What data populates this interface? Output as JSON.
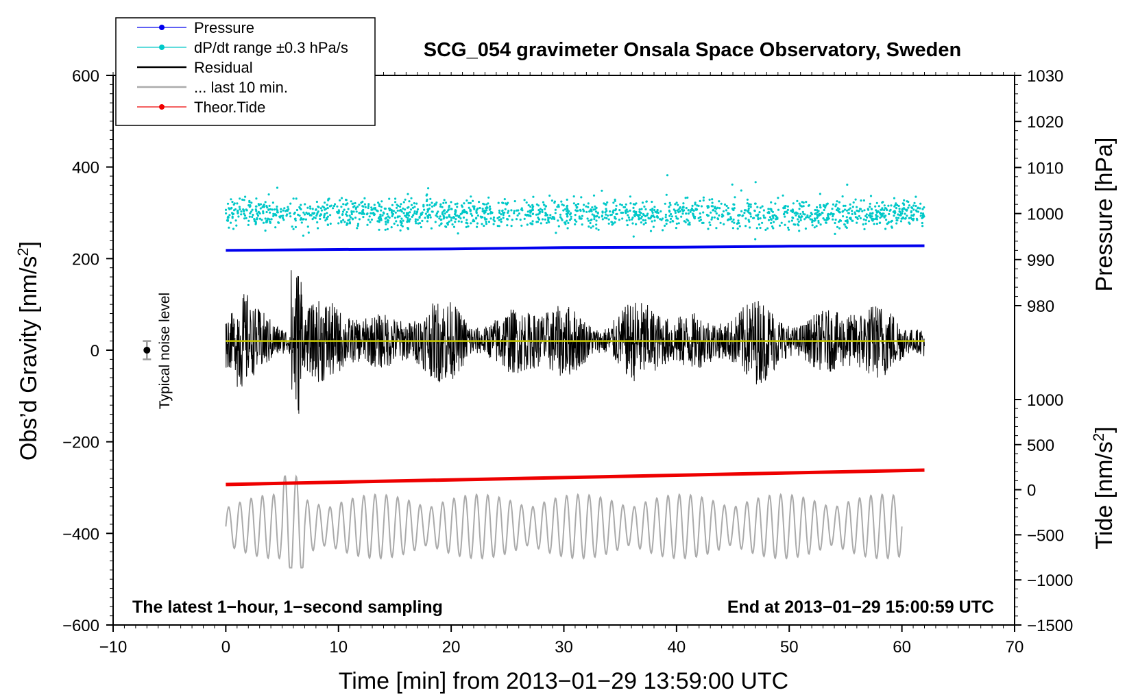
{
  "chart_data": {
    "type": "line",
    "title": "SCG_054 gravimeter Onsala Space Observatory, Sweden",
    "xlabel": "Time [min] from 2013−01−29 13:59:00 UTC",
    "ylabel_left_main": "Obs’d Gravity [nm/s",
    "ylabel_left_sup": "2",
    "ylabel_left_tail": "]",
    "ylabel_right_pressure": "Pressure [hPa]",
    "ylabel_right_tide_main": "Tide [nm/s",
    "ylabel_right_tide_sup": "2",
    "ylabel_right_tide_tail": "]",
    "note_left": "The latest 1−hour, 1−second sampling",
    "note_right": "End at 2013−01−29 15:00:59 UTC",
    "noise_label": "Typical noise level",
    "xlim": [
      -10,
      70
    ],
    "ylim": [
      -600,
      600
    ],
    "pressure_lim": [
      970,
      1030
    ],
    "tide_lim": [
      -1500,
      1500
    ],
    "x_ticks": [
      -10,
      0,
      10,
      20,
      30,
      40,
      50,
      60,
      70
    ],
    "x_tick_labels": [
      "−10",
      "0",
      "10",
      "20",
      "30",
      "40",
      "50",
      "60",
      "70"
    ],
    "y_ticks": [
      -600,
      -400,
      -200,
      0,
      200,
      400,
      600
    ],
    "y_tick_labels": [
      "−600",
      "−400",
      "−200",
      "0",
      "200",
      "400",
      "600"
    ],
    "pressure_ticks": [
      980,
      990,
      1000,
      1010,
      1020,
      1030
    ],
    "pressure_tick_labels": [
      "980",
      "990",
      "1000",
      "1010",
      "1020",
      "1030"
    ],
    "tide_ticks": [
      -1500,
      -1000,
      -500,
      0,
      500,
      1000
    ],
    "tide_tick_labels": [
      "−1500",
      "−1000",
      "−500",
      "0",
      "500",
      "1000"
    ],
    "noise_level": {
      "x": -7,
      "center": 0,
      "low": -20,
      "high": 20
    },
    "legend": [
      {
        "label": "Pressure",
        "color": "#0000ee",
        "style": "line-dot"
      },
      {
        "label": "dP/dt range ±0.3 hPa/s",
        "color": "#00c8c8",
        "style": "line-dot"
      },
      {
        "label": "Residual",
        "color": "#000000",
        "style": "line"
      },
      {
        "label": "... last 10 min.",
        "color": "#aaaaaa",
        "style": "line"
      },
      {
        "label": "Theor.Tide",
        "color": "#ee0000",
        "style": "line-dot"
      }
    ],
    "series": [
      {
        "name": "Pressure",
        "axis": "pressure",
        "color": "#0000ee",
        "x": [
          0,
          10,
          20,
          30,
          40,
          50,
          62
        ],
        "values": [
          992.0,
          992.2,
          992.3,
          992.6,
          992.7,
          992.9,
          993.0
        ]
      },
      {
        "name": "dP/dt range ±0.3 hPa/s",
        "axis": "pressure",
        "color": "#00c8c8",
        "center": 1000,
        "spread": 3,
        "x_range": [
          0,
          62
        ]
      },
      {
        "name": "Residual",
        "axis": "gravity",
        "color": "#000000",
        "baseline": 20,
        "x_range": [
          0,
          62
        ],
        "min": -185,
        "max": 235
      },
      {
        "name": "Residual mean",
        "axis": "gravity",
        "color": "#c8c800",
        "x": [
          0,
          62
        ],
        "values": [
          20,
          20
        ]
      },
      {
        "name": "... last 10 min.",
        "axis": "gravity",
        "color": "#aaaaaa",
        "baseline": -385,
        "x_range": [
          0,
          60
        ],
        "min": -475,
        "max": -275
      },
      {
        "name": "Theor.Tide",
        "axis": "tide",
        "color": "#ee0000",
        "x": [
          0,
          62
        ],
        "values": [
          58,
          217
        ]
      }
    ]
  }
}
